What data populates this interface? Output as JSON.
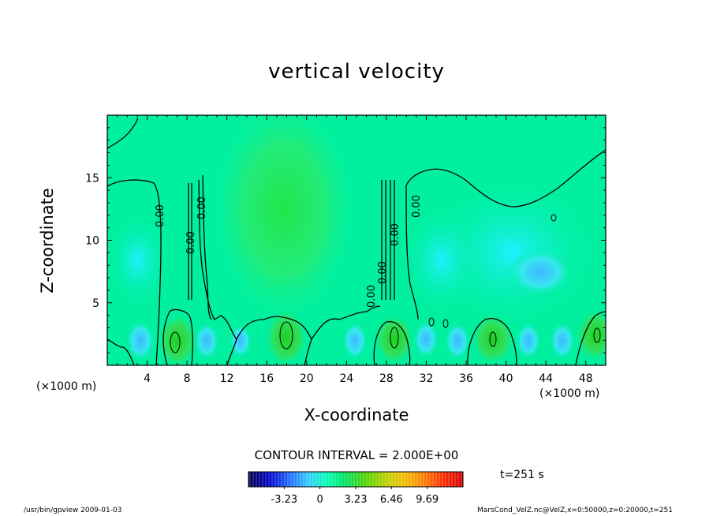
{
  "chart_data": {
    "type": "heatmap",
    "title": "vertical velocity",
    "xlabel": "X-coordinate",
    "ylabel": "Z-coordinate",
    "xunit": "(×1000 m)",
    "xlim": [
      0,
      50
    ],
    "ylim": [
      0,
      20
    ],
    "xticks": [
      4,
      8,
      12,
      16,
      20,
      24,
      28,
      32,
      36,
      40,
      44,
      48
    ],
    "yticks": [
      5,
      10,
      15
    ],
    "contour_labels": [
      "0.00",
      "0.00",
      "0.00",
      "0.00",
      "0.00",
      "0.00",
      "0.00",
      "0.00"
    ],
    "contour_interval_text": "CONTOUR INTERVAL = 2.000E+00",
    "colorbar": {
      "tick_labels": [
        "-3.23",
        "0",
        "3.23",
        "6.46",
        "9.69"
      ],
      "tick_values": [
        -3.23,
        0,
        3.23,
        6.46,
        9.69
      ],
      "range": [
        -6.46,
        12.92
      ],
      "colors": [
        "#000050",
        "#0000c8",
        "#1e64ff",
        "#32c8ff",
        "#00ffb4",
        "#00e05a",
        "#50d000",
        "#b4d000",
        "#f0c000",
        "#ff8000",
        "#ff3000",
        "#d80000"
      ]
    },
    "background_value_color": "#00f0a0",
    "time_label": "t=251 s",
    "footer_left": "/usr/bin/gpview   2009-01-03",
    "footer_right": "MarsCond_VelZ.nc@VelZ,x=0:50000,z=0:20000,t=251"
  }
}
